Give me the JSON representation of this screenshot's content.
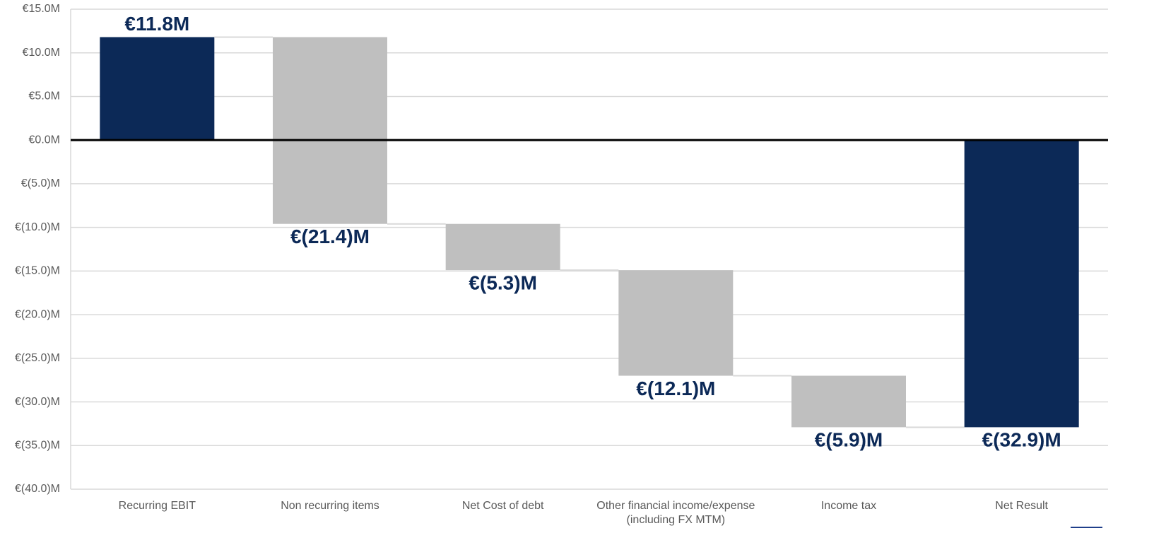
{
  "chart_data": {
    "type": "waterfall",
    "categories": [
      "Recurring EBIT",
      "Non recurring items",
      "Net Cost of debt",
      "Other financial income/expense (including FX MTM)",
      "Income tax",
      "Net Result"
    ],
    "values": [
      11.8,
      -21.4,
      -5.3,
      -12.1,
      -5.9,
      -32.9
    ],
    "value_labels": [
      "€11.8M",
      "€(21.4)M",
      "€(5.3)M",
      "€(12.1)M",
      "€(5.9)M",
      "€(32.9)M"
    ],
    "measure": [
      "absolute",
      "relative",
      "relative",
      "relative",
      "relative",
      "total"
    ],
    "colors": [
      "#0c2957",
      "#bfbfbf",
      "#bfbfbf",
      "#bfbfbf",
      "#bfbfbf",
      "#0c2957"
    ],
    "label_color": "#0c2957",
    "ylim": [
      -40,
      15
    ],
    "yticks": [
      {
        "value": -40,
        "label": "€(40.0)M"
      },
      {
        "value": -35,
        "label": "€(35.0)M"
      },
      {
        "value": -30,
        "label": "€(30.0)M"
      },
      {
        "value": -25,
        "label": "€(25.0)M"
      },
      {
        "value": -20,
        "label": "€(20.0)M"
      },
      {
        "value": -15,
        "label": "€(15.0)M"
      },
      {
        "value": -10,
        "label": "€(10.0)M"
      },
      {
        "value": -5,
        "label": "€(5.0)M"
      },
      {
        "value": 0,
        "label": "€0.0M"
      },
      {
        "value": 5,
        "label": "€5.0M"
      },
      {
        "value": 10,
        "label": "€10.0M"
      },
      {
        "value": 15,
        "label": "€15.0M"
      }
    ],
    "grid": true
  }
}
